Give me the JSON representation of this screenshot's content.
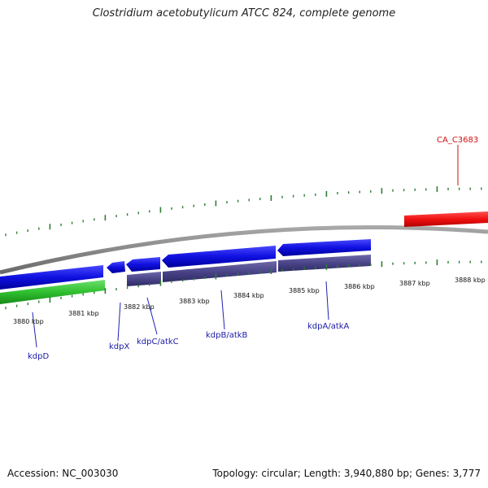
{
  "title": "Clostridium acetobutylicum ATCC 824, complete genome",
  "footer": {
    "accession": "Accession: NC_003030",
    "summary": "Topology: circular; Length: 3,940,880 bp; Genes: 3,777"
  },
  "colors": {
    "backbone": "#8a8a8a",
    "tick": "#2e7d32",
    "blue_gene": "#1010e0",
    "purple_gene": "#4a4488",
    "green_gene": "#30c030",
    "red_gene": "#f01010",
    "label_blue": "#1a1aa6",
    "label_red": "#cc1111"
  },
  "scale": {
    "unit": "kbp",
    "labels": [
      {
        "value": 3880,
        "text": "3880 kbp"
      },
      {
        "value": 3881,
        "text": "3881 kbp"
      },
      {
        "value": 3882,
        "text": "3882 kbp"
      },
      {
        "value": 3883,
        "text": "3883 kbp"
      },
      {
        "value": 3884,
        "text": "3884 kbp"
      },
      {
        "value": 3885,
        "text": "3885 kbp"
      },
      {
        "value": 3886,
        "text": "3886 kbp"
      },
      {
        "value": 3887,
        "text": "3887 kbp"
      },
      {
        "value": 3888,
        "text": "3888 kbp"
      }
    ]
  },
  "genes": [
    {
      "name": "kdpD",
      "color": "blue_gene"
    },
    {
      "name": "kdpX",
      "color": "blue_gene"
    },
    {
      "name": "kdpC/atkC",
      "color": "blue_gene"
    },
    {
      "name": "kdpB/atkB",
      "color": "blue_gene"
    },
    {
      "name": "kdpA/atkA",
      "color": "blue_gene"
    },
    {
      "name": "CA_C3683",
      "color": "red_gene"
    }
  ]
}
